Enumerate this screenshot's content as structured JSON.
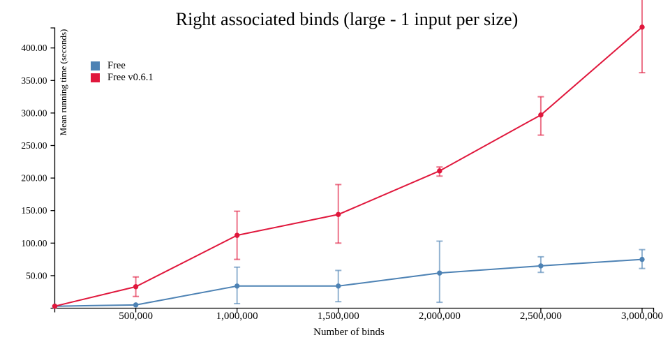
{
  "chart_data": {
    "type": "line",
    "title": "Right associated binds (large - 1 input per size)",
    "xlabel": "Number of binds",
    "ylabel": "Mean running time (seconds)",
    "xlim": [
      100000,
      3000000
    ],
    "ylim": [
      0,
      431
    ],
    "grid": false,
    "legend_position": "upper-left",
    "x": [
      100000,
      500000,
      1000000,
      1500000,
      2000000,
      2500000,
      3000000
    ],
    "x_ticks": [
      {
        "value": 500000,
        "label": "500,000"
      },
      {
        "value": 1000000,
        "label": "1,000,000"
      },
      {
        "value": 1500000,
        "label": "1,500,000"
      },
      {
        "value": 2000000,
        "label": "2,000,000"
      },
      {
        "value": 2500000,
        "label": "2,500,000"
      },
      {
        "value": 3000000,
        "label": "3,000,000"
      }
    ],
    "y_ticks": [
      {
        "value": 50,
        "label": "50.00"
      },
      {
        "value": 100,
        "label": "100.00"
      },
      {
        "value": 150,
        "label": "150.00"
      },
      {
        "value": 200,
        "label": "200.00"
      },
      {
        "value": 250,
        "label": "250.00"
      },
      {
        "value": 300,
        "label": "300.00"
      },
      {
        "value": 350,
        "label": "350.00"
      },
      {
        "value": 400,
        "label": "400.00"
      }
    ],
    "series": [
      {
        "name": "Free",
        "color": "#4d82b4",
        "values": [
          3,
          5,
          34,
          34,
          54,
          65,
          75
        ],
        "ci_low": [
          null,
          null,
          7,
          10,
          9,
          55,
          61
        ],
        "ci_high": [
          null,
          null,
          63,
          58,
          103,
          79,
          90
        ]
      },
      {
        "name": "Free v0.6.1",
        "color": "#e0173c",
        "values": [
          3,
          33,
          112,
          144,
          211,
          297,
          432
        ],
        "ci_low": [
          null,
          18,
          75,
          100,
          203,
          266,
          362
        ],
        "ci_high": [
          null,
          48,
          149,
          190,
          217,
          325,
          475
        ]
      }
    ]
  }
}
